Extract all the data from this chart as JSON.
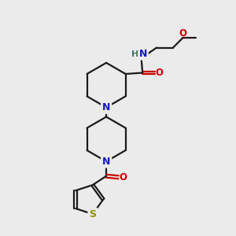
{
  "bg_color": "#ebebeb",
  "bond_color": "#1a1a1a",
  "N_color": "#1515c8",
  "O_color": "#cc0000",
  "S_color": "#909000",
  "H_color": "#4a7070",
  "line_width": 1.6,
  "font_size": 8.5,
  "fig_w": 3.0,
  "fig_h": 3.0,
  "dpi": 100,
  "xlim": [
    0,
    10
  ],
  "ylim": [
    0,
    10
  ]
}
